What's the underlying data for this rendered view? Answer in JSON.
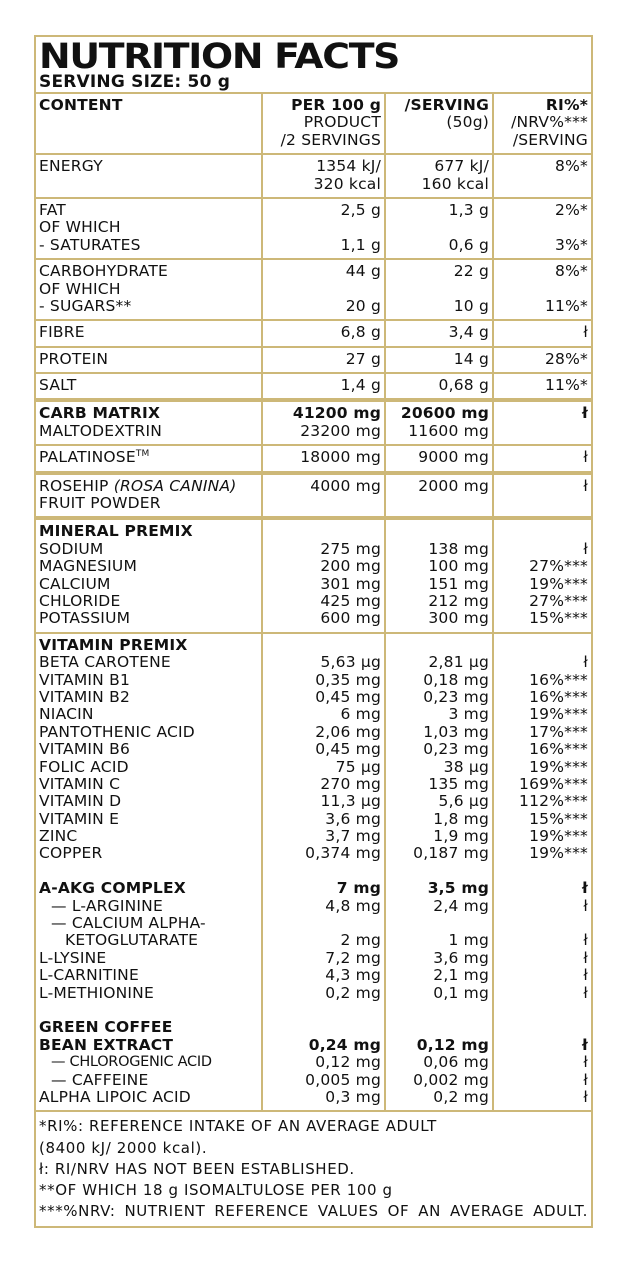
{
  "title": "NUTRITION FACTS",
  "serving_size": "SERVING SIZE: 50 g",
  "border_color": "#cdb878",
  "blocks": [
    {
      "lines": [
        {
          "name": "CONTENT",
          "bold": true,
          "p100": "PER 100 g",
          "srv": "/SERVING",
          "ri": "RI%*"
        },
        {
          "name": "",
          "p100": "PRODUCT",
          "srv": "(50g)",
          "ri": "/NRV%***"
        },
        {
          "name": "",
          "p100": "/2 SERVINGS",
          "srv": "",
          "ri": "/SERVING"
        }
      ]
    },
    {
      "lines": [
        {
          "name": "ENERGY",
          "p100": "1354 kJ/",
          "srv": "677 kJ/",
          "ri": "8%*"
        },
        {
          "name": "",
          "p100": "320 kcal",
          "srv": "160 kcal",
          "ri": ""
        }
      ]
    },
    {
      "lines": [
        {
          "name": "FAT",
          "p100": "2,5 g",
          "srv": "1,3 g",
          "ri": "2%*"
        },
        {
          "name": "OF WHICH",
          "p100": "",
          "srv": "",
          "ri": ""
        },
        {
          "name": "- SATURATES",
          "p100": "1,1 g",
          "srv": "0,6 g",
          "ri": "3%*"
        }
      ]
    },
    {
      "lines": [
        {
          "name": "CARBOHYDRATE",
          "p100": "44 g",
          "srv": "22 g",
          "ri": "8%*"
        },
        {
          "name": "OF WHICH",
          "p100": "",
          "srv": "",
          "ri": ""
        },
        {
          "name": "- SUGARS**",
          "p100": "20 g",
          "srv": "10 g",
          "ri": "11%*"
        }
      ]
    },
    {
      "lines": [
        {
          "name": "FIBRE",
          "p100": "6,8 g",
          "srv": "3,4 g",
          "ri": "ł"
        }
      ]
    },
    {
      "lines": [
        {
          "name": "PROTEIN",
          "p100": "27 g",
          "srv": "14 g",
          "ri": "28%*"
        }
      ]
    },
    {
      "thick": true,
      "lines": [
        {
          "name": "SALT",
          "p100": "1,4 g",
          "srv": "0,68 g",
          "ri": "11%*"
        }
      ]
    },
    {
      "lines": [
        {
          "name": "CARB MATRIX",
          "bold": true,
          "p100": "41200 mg",
          "srv": "20600 mg",
          "ri": "ł"
        },
        {
          "name": "MALTODEXTRIN",
          "p100": "23200 mg",
          "srv": "11600 mg",
          "ri": ""
        }
      ]
    },
    {
      "thick": true,
      "lines": [
        {
          "name": "PALATINOSE",
          "sup": "TM",
          "p100": "18000 mg",
          "srv": "9000 mg",
          "ri": "ł"
        }
      ]
    },
    {
      "thick": true,
      "lines": [
        {
          "name": "ROSEHIP ",
          "italic": "(ROSA CANINA)",
          "p100": "4000 mg",
          "srv": "2000 mg",
          "ri": "ł"
        },
        {
          "name": "FRUIT POWDER",
          "p100": "",
          "srv": "",
          "ri": ""
        }
      ]
    },
    {
      "lines": [
        {
          "name": "MINERAL PREMIX",
          "bold": true,
          "p100": "",
          "srv": "",
          "ri": ""
        },
        {
          "name": "SODIUM",
          "p100": "275 mg",
          "srv": "138 mg",
          "ri": "ł"
        },
        {
          "name": "MAGNESIUM",
          "p100": "200 mg",
          "srv": "100 mg",
          "ri": "27%***"
        },
        {
          "name": "CALCIUM",
          "p100": "301 mg",
          "srv": "151 mg",
          "ri": "19%***"
        },
        {
          "name": "CHLORIDE",
          "p100": "425 mg",
          "srv": "212 mg",
          "ri": "27%***"
        },
        {
          "name": "POTASSIUM",
          "p100": "600 mg",
          "srv": "300 mg",
          "ri": "15%***"
        }
      ]
    },
    {
      "lines": [
        {
          "name": "VITAMIN PREMIX",
          "bold": true,
          "p100": "",
          "srv": "",
          "ri": ""
        },
        {
          "name": "BETA CAROTENE",
          "p100": "5,63 µg",
          "srv": "2,81 µg",
          "ri": "ł"
        },
        {
          "name": "VITAMIN B1",
          "p100": "0,35 mg",
          "srv": "0,18 mg",
          "ri": "16%***"
        },
        {
          "name": "VITAMIN B2",
          "p100": "0,45 mg",
          "srv": "0,23 mg",
          "ri": "16%***"
        },
        {
          "name": "NIACIN",
          "p100": "6 mg",
          "srv": "3 mg",
          "ri": "19%***"
        },
        {
          "name": "PANTOTHENIC ACID",
          "p100": "2,06 mg",
          "srv": "1,03 mg",
          "ri": "17%***"
        },
        {
          "name": "VITAMIN B6",
          "p100": "0,45 mg",
          "srv": "0,23 mg",
          "ri": "16%***"
        },
        {
          "name": "FOLIC ACID",
          "p100": "75 µg",
          "srv": "38 µg",
          "ri": "19%***"
        },
        {
          "name": "VITAMIN C",
          "p100": "270 mg",
          "srv": "135 mg",
          "ri": "169%***"
        },
        {
          "name": "VITAMIN D",
          "p100": "11,3 µg",
          "srv": "5,6 µg",
          "ri": "112%***"
        },
        {
          "name": "VITAMIN E",
          "p100": "3,6 mg",
          "srv": "1,8 mg",
          "ri": "15%***"
        },
        {
          "name": "ZINC",
          "p100": "3,7 mg",
          "srv": "1,9 mg",
          "ri": "19%***"
        },
        {
          "name": "COPPER",
          "p100": "0,374 mg",
          "srv": "0,187 mg",
          "ri": "19%***"
        },
        {
          "name": "",
          "p100": "",
          "srv": "",
          "ri": ""
        },
        {
          "name": "A-AKG COMPLEX",
          "bold": true,
          "p100": "7 mg",
          "srv": "3,5 mg",
          "ri": "ł"
        },
        {
          "name": "— L-ARGININE",
          "indent": 1,
          "p100": "4,8 mg",
          "srv": "2,4 mg",
          "ri": "ł"
        },
        {
          "name": "— CALCIUM ALPHA-",
          "indent": 1,
          "p100": "",
          "srv": "",
          "ri": ""
        },
        {
          "name": "KETOGLUTARATE",
          "indent": 2,
          "p100": "2 mg",
          "srv": "1 mg",
          "ri": "ł"
        },
        {
          "name": "L-LYSINE",
          "p100": "7,2 mg",
          "srv": "3,6 mg",
          "ri": "ł"
        },
        {
          "name": "L-CARNITINE",
          "p100": "4,3 mg",
          "srv": "2,1 mg",
          "ri": "ł"
        },
        {
          "name": "L-METHIONINE",
          "p100": "0,2 mg",
          "srv": "0,1 mg",
          "ri": "ł"
        },
        {
          "name": "",
          "p100": "",
          "srv": "",
          "ri": ""
        },
        {
          "name": "GREEN COFFEE",
          "bold": true,
          "p100": "",
          "srv": "",
          "ri": ""
        },
        {
          "name": "BEAN EXTRACT",
          "bold": true,
          "p100": "0,24 mg",
          "srv": "0,12 mg",
          "ri": "ł"
        },
        {
          "name": "— CHLOROGENIC ACID",
          "indent": 1,
          "small": true,
          "p100": "0,12 mg",
          "srv": "0,06 mg",
          "ri": "ł"
        },
        {
          "name": "— CAFFEINE",
          "indent": 1,
          "p100": "0,005 mg",
          "srv": "0,002 mg",
          "ri": "ł"
        },
        {
          "name": "ALPHA LIPOIC ACID",
          "p100": "0,3 mg",
          "srv": "0,2 mg",
          "ri": "ł"
        }
      ]
    }
  ],
  "footnotes": [
    "*RI%: REFERENCE INTAKE OF AN AVERAGE ADULT",
    "(8400 kJ/ 2000 kcal).",
    "ł: RI/NRV HAS NOT BEEN ESTABLISHED.",
    "**OF WHICH 18 g ISOMALTULOSE PER 100 g",
    "***%NRV: NUTRIENT REFERENCE VALUES OF AN AVERAGE ADULT."
  ]
}
